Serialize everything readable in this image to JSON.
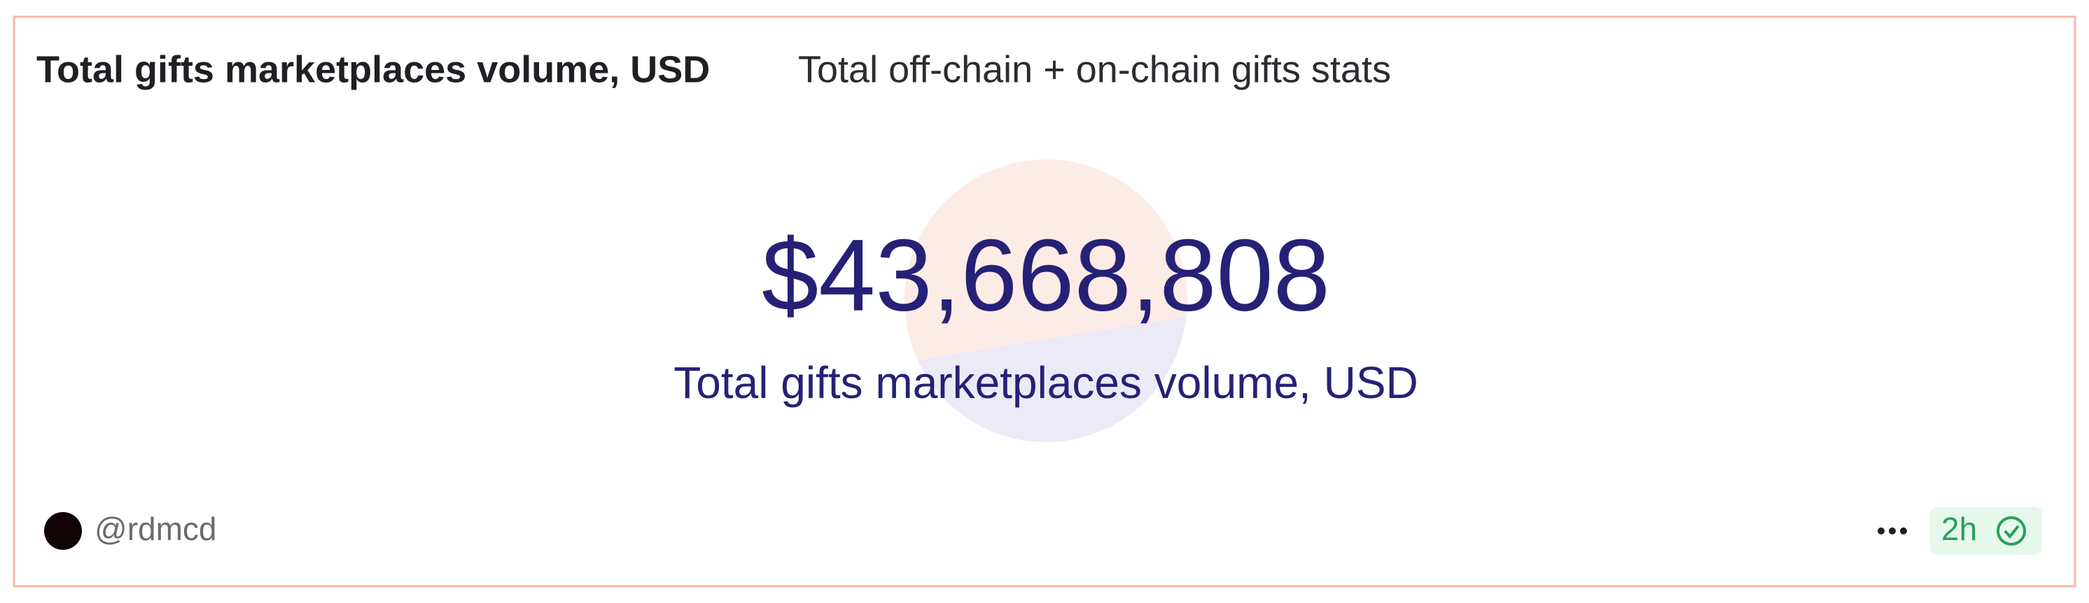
{
  "header": {
    "title": "Total gifts marketplaces volume, USD",
    "subtitle": "Total off-chain + on-chain gifts stats"
  },
  "counter": {
    "value": "$43,668,808",
    "label": "Total gifts marketplaces volume, USD"
  },
  "footer": {
    "author": "@rdmcd",
    "age": "2h"
  }
}
